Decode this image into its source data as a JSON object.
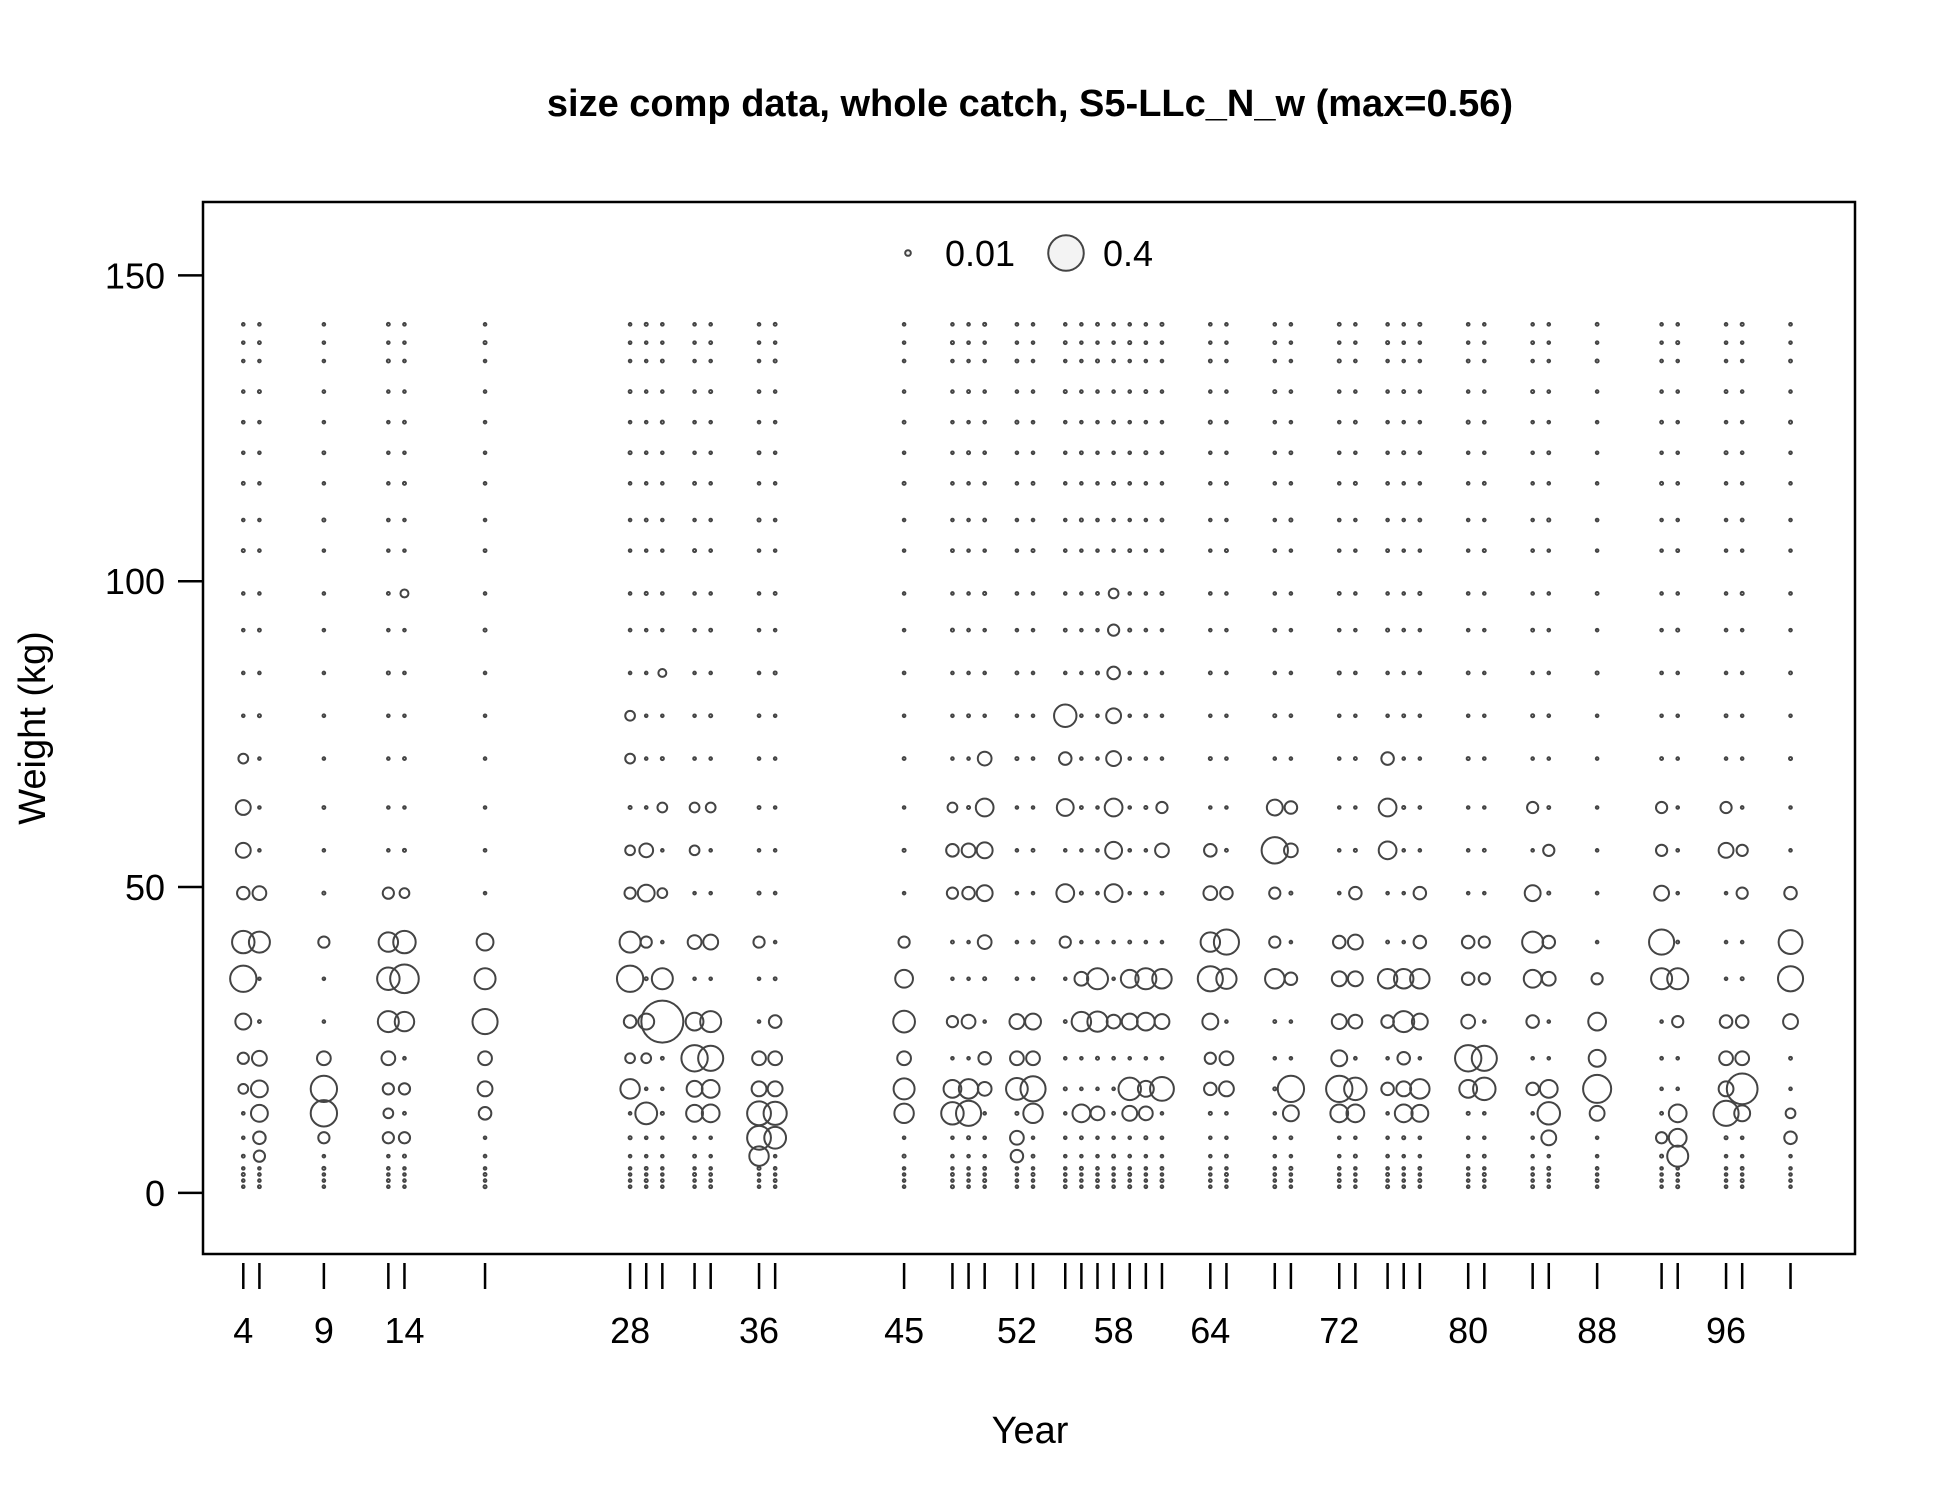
{
  "chart_data": {
    "type": "scatter",
    "title": "size comp data, whole catch, S5-LLc_N_w (max=0.56)",
    "xlabel": "Year",
    "ylabel": "Weight (kg)",
    "xlim": [
      1.5,
      104
    ],
    "ylim": [
      -10,
      162
    ],
    "x_tick_labels": [
      4,
      9,
      14,
      28,
      36,
      45,
      52,
      58,
      64,
      72,
      80,
      88,
      96
    ],
    "x_tick_marks": [
      4,
      5,
      9,
      13,
      14,
      19,
      28,
      29,
      30,
      32,
      33,
      36,
      37,
      45,
      48,
      49,
      50,
      52,
      53,
      55,
      56,
      57,
      58,
      59,
      60,
      61,
      64,
      65,
      68,
      69,
      72,
      73,
      75,
      76,
      77,
      80,
      81,
      84,
      85,
      88,
      92,
      93,
      96,
      97,
      100
    ],
    "y_ticks": [
      0,
      50,
      100,
      150
    ],
    "legend": {
      "position": "top-center",
      "items": [
        {
          "label": "0.01",
          "value": 0.01
        },
        {
          "label": "0.4",
          "value": 0.4
        }
      ]
    },
    "max_proportion": 0.56,
    "bins": [
      1,
      2,
      3,
      4,
      6,
      9,
      13,
      17,
      22,
      28,
      35,
      41,
      49,
      56,
      63,
      71,
      78,
      85,
      92,
      98,
      105,
      110,
      116,
      121,
      126,
      131,
      136,
      139,
      142
    ],
    "years": [
      4,
      5,
      9,
      13,
      14,
      19,
      28,
      29,
      30,
      32,
      33,
      36,
      37,
      45,
      48,
      49,
      50,
      52,
      53,
      55,
      56,
      57,
      58,
      59,
      60,
      61,
      64,
      65,
      68,
      69,
      72,
      73,
      75,
      76,
      77,
      80,
      81,
      84,
      85,
      88,
      92,
      93,
      96,
      97,
      100
    ],
    "points": [
      {
        "x": 4,
        "y": 41,
        "p": 0.16
      },
      {
        "x": 4,
        "y": 35,
        "p": 0.22
      },
      {
        "x": 4,
        "y": 28,
        "p": 0.08
      },
      {
        "x": 4,
        "y": 63,
        "p": 0.07
      },
      {
        "x": 4,
        "y": 56,
        "p": 0.07
      },
      {
        "x": 4,
        "y": 49,
        "p": 0.05
      },
      {
        "x": 4,
        "y": 22,
        "p": 0.04
      },
      {
        "x": 4,
        "y": 17,
        "p": 0.03
      },
      {
        "x": 4,
        "y": 71,
        "p": 0.03
      },
      {
        "x": 5,
        "y": 41,
        "p": 0.14
      },
      {
        "x": 5,
        "y": 13,
        "p": 0.09
      },
      {
        "x": 5,
        "y": 17,
        "p": 0.09
      },
      {
        "x": 5,
        "y": 22,
        "p": 0.07
      },
      {
        "x": 5,
        "y": 49,
        "p": 0.06
      },
      {
        "x": 5,
        "y": 9,
        "p": 0.05
      },
      {
        "x": 5,
        "y": 6,
        "p": 0.04
      },
      {
        "x": 9,
        "y": 17,
        "p": 0.22
      },
      {
        "x": 9,
        "y": 13,
        "p": 0.22
      },
      {
        "x": 9,
        "y": 22,
        "p": 0.06
      },
      {
        "x": 9,
        "y": 9,
        "p": 0.04
      },
      {
        "x": 9,
        "y": 41,
        "p": 0.04
      },
      {
        "x": 13,
        "y": 41,
        "p": 0.12
      },
      {
        "x": 13,
        "y": 35,
        "p": 0.16
      },
      {
        "x": 13,
        "y": 28,
        "p": 0.14
      },
      {
        "x": 13,
        "y": 22,
        "p": 0.06
      },
      {
        "x": 13,
        "y": 17,
        "p": 0.04
      },
      {
        "x": 13,
        "y": 13,
        "p": 0.03
      },
      {
        "x": 13,
        "y": 9,
        "p": 0.04
      },
      {
        "x": 13,
        "y": 49,
        "p": 0.04
      },
      {
        "x": 14,
        "y": 41,
        "p": 0.16
      },
      {
        "x": 14,
        "y": 35,
        "p": 0.26
      },
      {
        "x": 14,
        "y": 28,
        "p": 0.12
      },
      {
        "x": 14,
        "y": 49,
        "p": 0.03
      },
      {
        "x": 14,
        "y": 9,
        "p": 0.04
      },
      {
        "x": 14,
        "y": 17,
        "p": 0.04
      },
      {
        "x": 14,
        "y": 98,
        "p": 0.02
      },
      {
        "x": 19,
        "y": 41,
        "p": 0.09
      },
      {
        "x": 19,
        "y": 35,
        "p": 0.14
      },
      {
        "x": 19,
        "y": 28,
        "p": 0.2
      },
      {
        "x": 19,
        "y": 22,
        "p": 0.06
      },
      {
        "x": 19,
        "y": 17,
        "p": 0.07
      },
      {
        "x": 19,
        "y": 13,
        "p": 0.05
      },
      {
        "x": 28,
        "y": 41,
        "p": 0.14
      },
      {
        "x": 28,
        "y": 35,
        "p": 0.22
      },
      {
        "x": 28,
        "y": 17,
        "p": 0.12
      },
      {
        "x": 28,
        "y": 78,
        "p": 0.03
      },
      {
        "x": 28,
        "y": 71,
        "p": 0.03
      },
      {
        "x": 28,
        "y": 56,
        "p": 0.03
      },
      {
        "x": 28,
        "y": 49,
        "p": 0.04
      },
      {
        "x": 28,
        "y": 28,
        "p": 0.05
      },
      {
        "x": 28,
        "y": 22,
        "p": 0.03
      },
      {
        "x": 29,
        "y": 56,
        "p": 0.06
      },
      {
        "x": 29,
        "y": 49,
        "p": 0.09
      },
      {
        "x": 29,
        "y": 13,
        "p": 0.15
      },
      {
        "x": 29,
        "y": 28,
        "p": 0.08
      },
      {
        "x": 29,
        "y": 41,
        "p": 0.04
      },
      {
        "x": 29,
        "y": 22,
        "p": 0.03
      },
      {
        "x": 30,
        "y": 28,
        "p": 0.56
      },
      {
        "x": 30,
        "y": 35,
        "p": 0.14
      },
      {
        "x": 30,
        "y": 85,
        "p": 0.02
      },
      {
        "x": 30,
        "y": 63,
        "p": 0.03
      },
      {
        "x": 30,
        "y": 49,
        "p": 0.03
      },
      {
        "x": 32,
        "y": 22,
        "p": 0.22
      },
      {
        "x": 32,
        "y": 28,
        "p": 0.1
      },
      {
        "x": 32,
        "y": 41,
        "p": 0.06
      },
      {
        "x": 32,
        "y": 17,
        "p": 0.08
      },
      {
        "x": 32,
        "y": 13,
        "p": 0.09
      },
      {
        "x": 32,
        "y": 63,
        "p": 0.03
      },
      {
        "x": 32,
        "y": 56,
        "p": 0.03
      },
      {
        "x": 33,
        "y": 22,
        "p": 0.2
      },
      {
        "x": 33,
        "y": 28,
        "p": 0.14
      },
      {
        "x": 33,
        "y": 41,
        "p": 0.07
      },
      {
        "x": 33,
        "y": 17,
        "p": 0.1
      },
      {
        "x": 33,
        "y": 13,
        "p": 0.1
      },
      {
        "x": 33,
        "y": 63,
        "p": 0.03
      },
      {
        "x": 36,
        "y": 13,
        "p": 0.18
      },
      {
        "x": 36,
        "y": 9,
        "p": 0.18
      },
      {
        "x": 36,
        "y": 6,
        "p": 0.12
      },
      {
        "x": 36,
        "y": 17,
        "p": 0.07
      },
      {
        "x": 36,
        "y": 22,
        "p": 0.06
      },
      {
        "x": 36,
        "y": 41,
        "p": 0.04
      },
      {
        "x": 37,
        "y": 13,
        "p": 0.17
      },
      {
        "x": 37,
        "y": 9,
        "p": 0.15
      },
      {
        "x": 37,
        "y": 17,
        "p": 0.07
      },
      {
        "x": 37,
        "y": 22,
        "p": 0.06
      },
      {
        "x": 37,
        "y": 28,
        "p": 0.05
      },
      {
        "x": 45,
        "y": 28,
        "p": 0.15
      },
      {
        "x": 45,
        "y": 17,
        "p": 0.14
      },
      {
        "x": 45,
        "y": 13,
        "p": 0.12
      },
      {
        "x": 45,
        "y": 35,
        "p": 0.1
      },
      {
        "x": 45,
        "y": 22,
        "p": 0.06
      },
      {
        "x": 45,
        "y": 41,
        "p": 0.04
      },
      {
        "x": 48,
        "y": 13,
        "p": 0.16
      },
      {
        "x": 48,
        "y": 17,
        "p": 0.1
      },
      {
        "x": 48,
        "y": 56,
        "p": 0.05
      },
      {
        "x": 48,
        "y": 63,
        "p": 0.03
      },
      {
        "x": 48,
        "y": 49,
        "p": 0.04
      },
      {
        "x": 48,
        "y": 28,
        "p": 0.04
      },
      {
        "x": 49,
        "y": 13,
        "p": 0.2
      },
      {
        "x": 49,
        "y": 17,
        "p": 0.12
      },
      {
        "x": 49,
        "y": 28,
        "p": 0.06
      },
      {
        "x": 49,
        "y": 56,
        "p": 0.06
      },
      {
        "x": 49,
        "y": 49,
        "p": 0.05
      },
      {
        "x": 50,
        "y": 63,
        "p": 0.1
      },
      {
        "x": 50,
        "y": 56,
        "p": 0.08
      },
      {
        "x": 50,
        "y": 49,
        "p": 0.08
      },
      {
        "x": 50,
        "y": 41,
        "p": 0.06
      },
      {
        "x": 50,
        "y": 71,
        "p": 0.06
      },
      {
        "x": 50,
        "y": 17,
        "p": 0.06
      },
      {
        "x": 50,
        "y": 22,
        "p": 0.05
      },
      {
        "x": 52,
        "y": 17,
        "p": 0.15
      },
      {
        "x": 52,
        "y": 28,
        "p": 0.07
      },
      {
        "x": 52,
        "y": 22,
        "p": 0.06
      },
      {
        "x": 52,
        "y": 9,
        "p": 0.06
      },
      {
        "x": 52,
        "y": 6,
        "p": 0.05
      },
      {
        "x": 53,
        "y": 17,
        "p": 0.2
      },
      {
        "x": 53,
        "y": 13,
        "p": 0.12
      },
      {
        "x": 53,
        "y": 28,
        "p": 0.08
      },
      {
        "x": 53,
        "y": 22,
        "p": 0.06
      },
      {
        "x": 55,
        "y": 78,
        "p": 0.16
      },
      {
        "x": 55,
        "y": 63,
        "p": 0.09
      },
      {
        "x": 55,
        "y": 49,
        "p": 0.1
      },
      {
        "x": 55,
        "y": 71,
        "p": 0.05
      },
      {
        "x": 55,
        "y": 41,
        "p": 0.04
      },
      {
        "x": 56,
        "y": 28,
        "p": 0.12
      },
      {
        "x": 56,
        "y": 13,
        "p": 0.1
      },
      {
        "x": 56,
        "y": 35,
        "p": 0.06
      },
      {
        "x": 57,
        "y": 28,
        "p": 0.13
      },
      {
        "x": 57,
        "y": 35,
        "p": 0.14
      },
      {
        "x": 57,
        "y": 13,
        "p": 0.06
      },
      {
        "x": 58,
        "y": 63,
        "p": 0.1
      },
      {
        "x": 58,
        "y": 56,
        "p": 0.09
      },
      {
        "x": 58,
        "y": 49,
        "p": 0.1
      },
      {
        "x": 58,
        "y": 71,
        "p": 0.07
      },
      {
        "x": 58,
        "y": 78,
        "p": 0.07
      },
      {
        "x": 58,
        "y": 85,
        "p": 0.05
      },
      {
        "x": 58,
        "y": 92,
        "p": 0.04
      },
      {
        "x": 58,
        "y": 98,
        "p": 0.03
      },
      {
        "x": 58,
        "y": 28,
        "p": 0.06
      },
      {
        "x": 59,
        "y": 17,
        "p": 0.16
      },
      {
        "x": 59,
        "y": 35,
        "p": 0.1
      },
      {
        "x": 59,
        "y": 28,
        "p": 0.08
      },
      {
        "x": 59,
        "y": 13,
        "p": 0.07
      },
      {
        "x": 60,
        "y": 35,
        "p": 0.14
      },
      {
        "x": 60,
        "y": 28,
        "p": 0.1
      },
      {
        "x": 60,
        "y": 17,
        "p": 0.08
      },
      {
        "x": 60,
        "y": 13,
        "p": 0.06
      },
      {
        "x": 61,
        "y": 17,
        "p": 0.18
      },
      {
        "x": 61,
        "y": 35,
        "p": 0.12
      },
      {
        "x": 61,
        "y": 28,
        "p": 0.07
      },
      {
        "x": 61,
        "y": 56,
        "p": 0.06
      },
      {
        "x": 61,
        "y": 63,
        "p": 0.04
      },
      {
        "x": 64,
        "y": 41,
        "p": 0.12
      },
      {
        "x": 64,
        "y": 35,
        "p": 0.2
      },
      {
        "x": 64,
        "y": 28,
        "p": 0.08
      },
      {
        "x": 64,
        "y": 49,
        "p": 0.06
      },
      {
        "x": 64,
        "y": 56,
        "p": 0.05
      },
      {
        "x": 64,
        "y": 17,
        "p": 0.05
      },
      {
        "x": 64,
        "y": 22,
        "p": 0.04
      },
      {
        "x": 65,
        "y": 41,
        "p": 0.2
      },
      {
        "x": 65,
        "y": 35,
        "p": 0.13
      },
      {
        "x": 65,
        "y": 17,
        "p": 0.07
      },
      {
        "x": 65,
        "y": 22,
        "p": 0.06
      },
      {
        "x": 65,
        "y": 49,
        "p": 0.05
      },
      {
        "x": 68,
        "y": 56,
        "p": 0.22
      },
      {
        "x": 68,
        "y": 35,
        "p": 0.12
      },
      {
        "x": 68,
        "y": 63,
        "p": 0.08
      },
      {
        "x": 68,
        "y": 49,
        "p": 0.04
      },
      {
        "x": 68,
        "y": 41,
        "p": 0.04
      },
      {
        "x": 69,
        "y": 17,
        "p": 0.22
      },
      {
        "x": 69,
        "y": 13,
        "p": 0.08
      },
      {
        "x": 69,
        "y": 56,
        "p": 0.06
      },
      {
        "x": 69,
        "y": 63,
        "p": 0.05
      },
      {
        "x": 69,
        "y": 35,
        "p": 0.05
      },
      {
        "x": 72,
        "y": 17,
        "p": 0.22
      },
      {
        "x": 72,
        "y": 13,
        "p": 0.1
      },
      {
        "x": 72,
        "y": 22,
        "p": 0.08
      },
      {
        "x": 72,
        "y": 28,
        "p": 0.07
      },
      {
        "x": 72,
        "y": 35,
        "p": 0.07
      },
      {
        "x": 72,
        "y": 41,
        "p": 0.05
      },
      {
        "x": 73,
        "y": 17,
        "p": 0.16
      },
      {
        "x": 73,
        "y": 13,
        "p": 0.1
      },
      {
        "x": 73,
        "y": 41,
        "p": 0.07
      },
      {
        "x": 73,
        "y": 35,
        "p": 0.07
      },
      {
        "x": 73,
        "y": 28,
        "p": 0.06
      },
      {
        "x": 73,
        "y": 49,
        "p": 0.05
      },
      {
        "x": 75,
        "y": 63,
        "p": 0.1
      },
      {
        "x": 75,
        "y": 56,
        "p": 0.1
      },
      {
        "x": 75,
        "y": 35,
        "p": 0.12
      },
      {
        "x": 75,
        "y": 71,
        "p": 0.05
      },
      {
        "x": 75,
        "y": 28,
        "p": 0.05
      },
      {
        "x": 75,
        "y": 17,
        "p": 0.05
      },
      {
        "x": 76,
        "y": 28,
        "p": 0.14
      },
      {
        "x": 76,
        "y": 35,
        "p": 0.12
      },
      {
        "x": 76,
        "y": 13,
        "p": 0.1
      },
      {
        "x": 76,
        "y": 17,
        "p": 0.07
      },
      {
        "x": 76,
        "y": 22,
        "p": 0.05
      },
      {
        "x": 77,
        "y": 35,
        "p": 0.12
      },
      {
        "x": 77,
        "y": 17,
        "p": 0.12
      },
      {
        "x": 77,
        "y": 13,
        "p": 0.09
      },
      {
        "x": 77,
        "y": 28,
        "p": 0.08
      },
      {
        "x": 77,
        "y": 49,
        "p": 0.05
      },
      {
        "x": 77,
        "y": 41,
        "p": 0.05
      },
      {
        "x": 80,
        "y": 22,
        "p": 0.22
      },
      {
        "x": 80,
        "y": 17,
        "p": 0.1
      },
      {
        "x": 80,
        "y": 28,
        "p": 0.06
      },
      {
        "x": 80,
        "y": 41,
        "p": 0.05
      },
      {
        "x": 80,
        "y": 35,
        "p": 0.05
      },
      {
        "x": 81,
        "y": 22,
        "p": 0.2
      },
      {
        "x": 81,
        "y": 17,
        "p": 0.16
      },
      {
        "x": 81,
        "y": 41,
        "p": 0.04
      },
      {
        "x": 81,
        "y": 35,
        "p": 0.04
      },
      {
        "x": 84,
        "y": 41,
        "p": 0.14
      },
      {
        "x": 84,
        "y": 35,
        "p": 0.1
      },
      {
        "x": 84,
        "y": 49,
        "p": 0.08
      },
      {
        "x": 84,
        "y": 63,
        "p": 0.04
      },
      {
        "x": 84,
        "y": 28,
        "p": 0.05
      },
      {
        "x": 84,
        "y": 17,
        "p": 0.05
      },
      {
        "x": 85,
        "y": 13,
        "p": 0.16
      },
      {
        "x": 85,
        "y": 17,
        "p": 0.1
      },
      {
        "x": 85,
        "y": 9,
        "p": 0.07
      },
      {
        "x": 85,
        "y": 35,
        "p": 0.06
      },
      {
        "x": 85,
        "y": 41,
        "p": 0.05
      },
      {
        "x": 85,
        "y": 56,
        "p": 0.04
      },
      {
        "x": 88,
        "y": 17,
        "p": 0.25
      },
      {
        "x": 88,
        "y": 28,
        "p": 0.1
      },
      {
        "x": 88,
        "y": 22,
        "p": 0.09
      },
      {
        "x": 88,
        "y": 13,
        "p": 0.07
      },
      {
        "x": 88,
        "y": 35,
        "p": 0.04
      },
      {
        "x": 92,
        "y": 41,
        "p": 0.2
      },
      {
        "x": 92,
        "y": 35,
        "p": 0.14
      },
      {
        "x": 92,
        "y": 49,
        "p": 0.07
      },
      {
        "x": 92,
        "y": 56,
        "p": 0.04
      },
      {
        "x": 92,
        "y": 63,
        "p": 0.04
      },
      {
        "x": 92,
        "y": 9,
        "p": 0.04
      },
      {
        "x": 93,
        "y": 35,
        "p": 0.14
      },
      {
        "x": 93,
        "y": 6,
        "p": 0.14
      },
      {
        "x": 93,
        "y": 9,
        "p": 0.1
      },
      {
        "x": 93,
        "y": 13,
        "p": 0.1
      },
      {
        "x": 93,
        "y": 28,
        "p": 0.04
      },
      {
        "x": 96,
        "y": 13,
        "p": 0.2
      },
      {
        "x": 96,
        "y": 17,
        "p": 0.07
      },
      {
        "x": 96,
        "y": 56,
        "p": 0.07
      },
      {
        "x": 96,
        "y": 22,
        "p": 0.06
      },
      {
        "x": 96,
        "y": 28,
        "p": 0.05
      },
      {
        "x": 96,
        "y": 63,
        "p": 0.04
      },
      {
        "x": 97,
        "y": 17,
        "p": 0.3
      },
      {
        "x": 97,
        "y": 13,
        "p": 0.08
      },
      {
        "x": 97,
        "y": 22,
        "p": 0.06
      },
      {
        "x": 97,
        "y": 28,
        "p": 0.05
      },
      {
        "x": 97,
        "y": 49,
        "p": 0.04
      },
      {
        "x": 97,
        "y": 56,
        "p": 0.04
      },
      {
        "x": 100,
        "y": 35,
        "p": 0.2
      },
      {
        "x": 100,
        "y": 41,
        "p": 0.18
      },
      {
        "x": 100,
        "y": 28,
        "p": 0.07
      },
      {
        "x": 100,
        "y": 49,
        "p": 0.05
      },
      {
        "x": 100,
        "y": 9,
        "p": 0.05
      },
      {
        "x": 100,
        "y": 13,
        "p": 0.03
      }
    ],
    "colors": {
      "bubble_stroke": "#444444",
      "legend_fill": "#f3f3f3"
    }
  }
}
